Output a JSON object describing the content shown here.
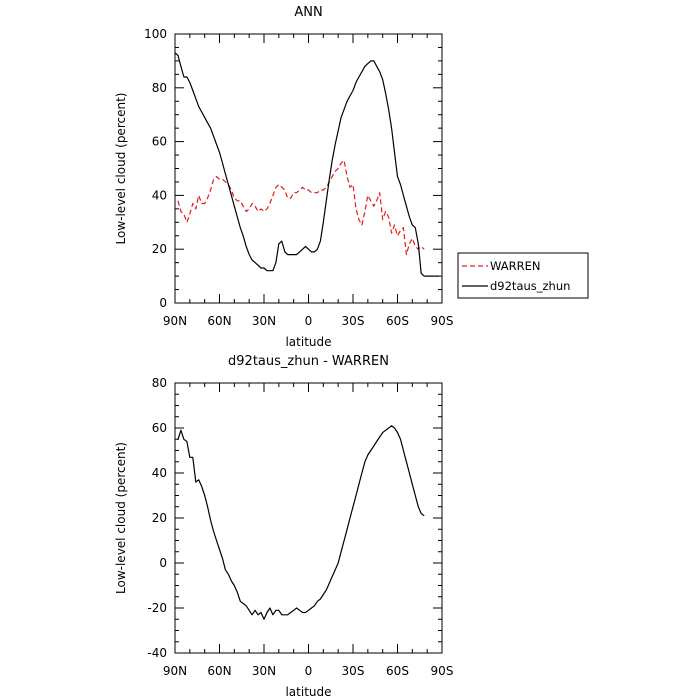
{
  "chart_data": [
    {
      "type": "line",
      "title": "ANN",
      "xlabel": "latitude",
      "ylabel": "Low-level cloud (percent)",
      "xlim": [
        -90,
        90
      ],
      "ylim": [
        0,
        100
      ],
      "x_tick_values": [
        -90,
        -60,
        -30,
        0,
        30,
        60,
        90
      ],
      "x_tick_labels": [
        "90N",
        "60N",
        "30N",
        "0",
        "30S",
        "60S",
        "90S"
      ],
      "y_ticks": [
        0,
        20,
        40,
        60,
        80,
        100
      ],
      "grid": false,
      "legend_position": "right",
      "series": [
        {
          "name": "WARREN",
          "color": "#e41a1c",
          "dash": true,
          "x": [
            -88,
            -86,
            -84,
            -82,
            -80,
            -78,
            -76,
            -74,
            -72,
            -70,
            -68,
            -66,
            -64,
            -62,
            -60,
            -58,
            -56,
            -54,
            -52,
            -50,
            -48,
            -46,
            -44,
            -42,
            -40,
            -38,
            -36,
            -34,
            -32,
            -30,
            -28,
            -26,
            -24,
            -22,
            -20,
            -18,
            -16,
            -14,
            -12,
            -10,
            -8,
            -6,
            -4,
            -2,
            0,
            2,
            4,
            6,
            8,
            10,
            12,
            14,
            16,
            18,
            20,
            22,
            24,
            26,
            28,
            30,
            32,
            34,
            36,
            38,
            40,
            42,
            44,
            46,
            48,
            50,
            52,
            54,
            56,
            58,
            60,
            62,
            64,
            66,
            68,
            70,
            72,
            74,
            76,
            78
          ],
          "y": [
            38,
            34,
            33,
            30,
            33,
            37,
            35,
            40,
            37,
            37,
            39,
            42,
            46,
            47,
            46,
            46,
            45,
            44,
            42,
            39,
            38,
            38,
            36,
            34,
            35,
            37,
            36,
            34,
            35,
            34,
            35,
            37,
            40,
            43,
            44,
            43,
            42,
            39,
            39,
            41,
            41,
            42,
            43,
            42,
            42,
            41,
            41,
            41,
            42,
            42,
            43,
            45,
            47,
            49,
            50,
            52,
            53,
            47,
            43,
            44,
            35,
            31,
            29,
            34,
            40,
            38,
            36,
            38,
            41,
            31,
            34,
            32,
            26,
            29,
            25,
            27,
            28,
            18,
            22,
            24,
            21,
            20,
            21,
            20
          ]
        },
        {
          "name": "d92taus_zhun",
          "color": "#000000",
          "dash": false,
          "x": [
            -90,
            -88,
            -86,
            -84,
            -82,
            -80,
            -78,
            -76,
            -74,
            -72,
            -70,
            -68,
            -66,
            -64,
            -62,
            -60,
            -58,
            -56,
            -54,
            -52,
            -50,
            -48,
            -46,
            -44,
            -42,
            -40,
            -38,
            -36,
            -34,
            -32,
            -30,
            -28,
            -26,
            -24,
            -22,
            -20,
            -18,
            -16,
            -14,
            -12,
            -10,
            -8,
            -6,
            -4,
            -2,
            0,
            2,
            4,
            6,
            8,
            10,
            12,
            14,
            16,
            18,
            20,
            22,
            24,
            26,
            28,
            30,
            32,
            34,
            36,
            38,
            40,
            42,
            44,
            46,
            48,
            50,
            52,
            54,
            56,
            58,
            60,
            62,
            64,
            66,
            68,
            70,
            72,
            74,
            76,
            78,
            80,
            82,
            84,
            86,
            88
          ],
          "y": [
            93,
            92,
            88,
            84,
            84,
            82,
            79,
            76,
            73,
            71,
            69,
            67,
            65,
            62,
            59,
            56,
            52,
            48,
            44,
            40,
            36,
            32,
            28,
            25,
            21,
            18,
            16,
            15,
            14,
            13,
            13,
            12,
            12,
            12,
            15,
            22,
            23,
            19,
            18,
            18,
            18,
            18,
            19,
            20,
            21,
            20,
            19,
            19,
            20,
            23,
            30,
            38,
            46,
            53,
            59,
            64,
            69,
            72,
            75,
            77,
            79,
            82,
            84,
            86,
            88,
            89,
            90,
            90,
            88,
            86,
            83,
            78,
            72,
            65,
            56,
            47,
            44,
            40,
            36,
            32,
            29,
            28,
            22,
            11,
            10,
            10,
            10,
            10,
            10,
            10
          ]
        }
      ]
    },
    {
      "type": "line",
      "title": "d92taus_zhun - WARREN",
      "xlabel": "latitude",
      "ylabel": "Low-level cloud (percent)",
      "xlim": [
        -90,
        90
      ],
      "ylim": [
        -40,
        80
      ],
      "x_tick_values": [
        -90,
        -60,
        -30,
        0,
        30,
        60,
        90
      ],
      "x_tick_labels": [
        "90N",
        "60N",
        "30N",
        "0",
        "30S",
        "60S",
        "90S"
      ],
      "y_ticks": [
        -40,
        -20,
        0,
        20,
        40,
        60,
        80
      ],
      "grid": false,
      "series": [
        {
          "color": "#000000",
          "dash": false,
          "x": [
            -88,
            -86,
            -84,
            -82,
            -80,
            -78,
            -76,
            -74,
            -72,
            -70,
            -68,
            -66,
            -64,
            -62,
            -60,
            -58,
            -56,
            -54,
            -52,
            -50,
            -48,
            -46,
            -44,
            -42,
            -40,
            -38,
            -36,
            -34,
            -32,
            -30,
            -28,
            -26,
            -24,
            -22,
            -20,
            -18,
            -16,
            -14,
            -12,
            -10,
            -8,
            -6,
            -4,
            -2,
            0,
            2,
            4,
            6,
            8,
            10,
            12,
            14,
            16,
            18,
            20,
            22,
            24,
            26,
            28,
            30,
            32,
            34,
            36,
            38,
            40,
            42,
            44,
            46,
            48,
            50,
            52,
            54,
            56,
            58,
            60,
            62,
            64,
            66,
            68,
            70,
            72,
            74,
            76,
            78
          ],
          "y": [
            55,
            59,
            55,
            54,
            47,
            47,
            36,
            37,
            34,
            30,
            25,
            19,
            14,
            10,
            6,
            2,
            -3,
            -5,
            -8,
            -10,
            -13,
            -17,
            -18,
            -19,
            -21,
            -23,
            -21,
            -23,
            -22,
            -25,
            -22,
            -20,
            -23,
            -21,
            -21,
            -23,
            -23,
            -23,
            -22,
            -21,
            -20,
            -21,
            -22,
            -22,
            -21,
            -20,
            -19,
            -17,
            -16,
            -14,
            -12,
            -9,
            -6,
            -3,
            0,
            5,
            10,
            15,
            20,
            25,
            30,
            35,
            40,
            45,
            48,
            50,
            52,
            54,
            56,
            58,
            59,
            60,
            61,
            60,
            58,
            55,
            50,
            45,
            40,
            35,
            30,
            25,
            22,
            21
          ]
        }
      ]
    }
  ]
}
